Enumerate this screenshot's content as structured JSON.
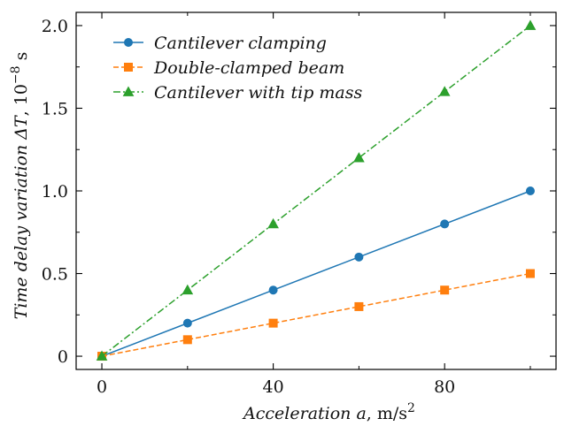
{
  "chart_data": {
    "type": "line",
    "x": [
      0,
      20,
      40,
      60,
      80,
      100
    ],
    "series": [
      {
        "name": "Cantilever clamping",
        "values": [
          0,
          0.2,
          0.4,
          0.6,
          0.8,
          1.0
        ],
        "color": "#1f77b4",
        "marker": "circle",
        "linestyle": "solid"
      },
      {
        "name": "Double-clamped beam",
        "values": [
          0,
          0.1,
          0.2,
          0.3,
          0.4,
          0.5
        ],
        "color": "#ff7f0e",
        "marker": "square",
        "linestyle": "dashed"
      },
      {
        "name": "Cantilever with tip mass",
        "values": [
          0,
          0.4,
          0.8,
          1.2,
          1.6,
          2.0
        ],
        "color": "#2ca02c",
        "marker": "triangle",
        "linestyle": "dashdot"
      }
    ],
    "xlim": [
      -6,
      106
    ],
    "ylim": [
      -0.08,
      2.08
    ],
    "xticks": [
      0,
      40,
      80
    ],
    "xtick_labels": [
      "0",
      "40",
      "80"
    ],
    "xminor_ticks": [
      20,
      60,
      100
    ],
    "yticks": [
      0,
      0.5,
      1.0,
      1.5,
      2.0
    ],
    "ytick_labels": [
      "0",
      "0.5",
      "1.0",
      "1.5",
      "2.0"
    ],
    "xlabel": {
      "main": "Acceleration ",
      "var": "a",
      "unit": ", m/s",
      "sup": "2"
    },
    "ylabel": {
      "main": "Time delay variation ",
      "var": "ΔT",
      "unit": ", 10",
      "sup": "−8",
      "tail": " s"
    },
    "legend_position": "top-left",
    "grid": false
  }
}
